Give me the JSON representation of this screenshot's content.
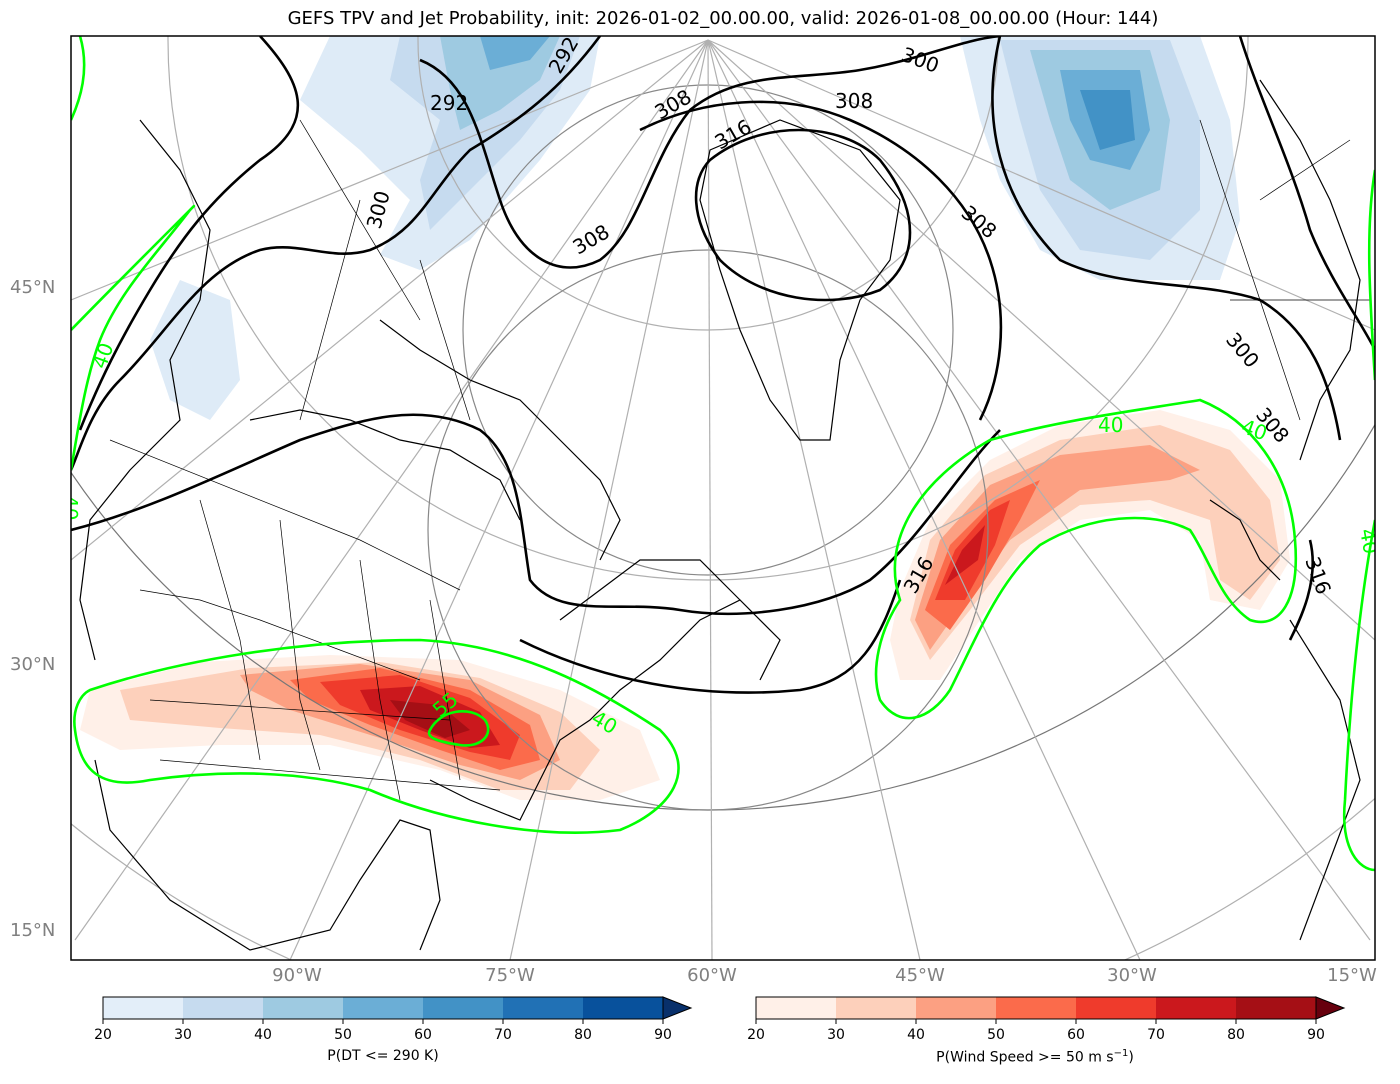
{
  "title": "GEFS TPV and Jet Probability, init: 2026-01-02_00.00.00, valid: 2026-01-08_00.00.00 (Hour: 144)",
  "lat_labels": [
    "45°N",
    "30°N",
    "15°N"
  ],
  "lon_labels": [
    "90°W",
    "75°W",
    "60°W",
    "45°W",
    "30°W",
    "15°W"
  ],
  "contour_labels": {
    "theta": [
      "292",
      "292",
      "300",
      "300",
      "308",
      "308",
      "316",
      "308",
      "308",
      "316",
      "316",
      "300",
      "308"
    ],
    "jet": [
      "40",
      "40",
      "40",
      "40",
      "55",
      "40",
      "40"
    ]
  },
  "colorbar_dt": {
    "ticks": [
      "20",
      "30",
      "40",
      "50",
      "60",
      "70",
      "80",
      "90"
    ],
    "label": "P(DT <= 290 K)",
    "colors": [
      "#e3eef9",
      "#c6dbef",
      "#9ecae1",
      "#6baed6",
      "#4292c6",
      "#2171b5",
      "#08519c",
      "#08306b"
    ]
  },
  "colorbar_wind": {
    "ticks": [
      "20",
      "30",
      "40",
      "50",
      "60",
      "70",
      "80",
      "90"
    ],
    "label": "P(Wind Speed >= 50 m s",
    "label_sup": "−1",
    "label_end": ")",
    "colors": [
      "#fff0e8",
      "#fdd0bb",
      "#fca082",
      "#fb6b4b",
      "#ef3b2c",
      "#cb181d",
      "#a50f15",
      "#67000d"
    ]
  }
}
